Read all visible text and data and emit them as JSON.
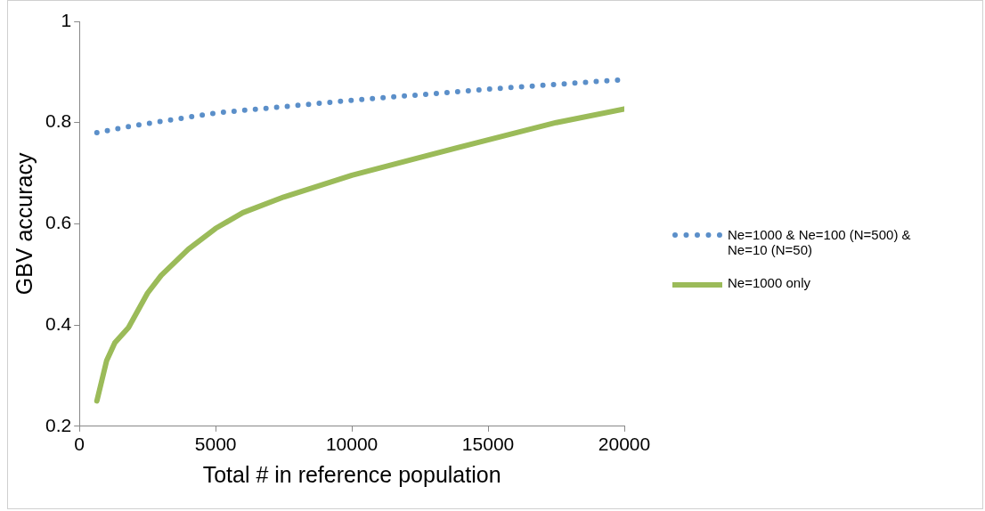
{
  "chart_data": {
    "type": "line",
    "xlabel": "Total # in reference population",
    "ylabel": "GBV accuracy",
    "xlim": [
      0,
      20000
    ],
    "xticks": [
      0,
      5000,
      10000,
      15000,
      20000
    ],
    "ylim": [
      0.2,
      1
    ],
    "yticks": [
      0.2,
      0.4,
      0.6,
      0.8,
      1
    ],
    "grid": false,
    "legend": "right",
    "marker": "none",
    "series": [
      {
        "name": "Ne=1000 & Ne=100 (N=500) & Ne=10 (N=50)",
        "color": "#5b8fc9",
        "line_style": "dotted",
        "x": [
          640,
          2000,
          5000,
          10000,
          15000,
          20000
        ],
        "values": [
          0.78,
          0.794,
          0.819,
          0.844,
          0.866,
          0.885
        ]
      },
      {
        "name": "Ne=1000 only",
        "color": "#9bbb59",
        "line_style": "solid",
        "x": [
          640,
          1000,
          1300,
          1800,
          2500,
          3000,
          4000,
          5000,
          6000,
          7500,
          10000,
          12500,
          15000,
          17500,
          20000
        ],
        "values": [
          0.25,
          0.33,
          0.365,
          0.395,
          0.463,
          0.498,
          0.55,
          0.591,
          0.622,
          0.653,
          0.696,
          0.731,
          0.766,
          0.8,
          0.827
        ]
      }
    ]
  }
}
